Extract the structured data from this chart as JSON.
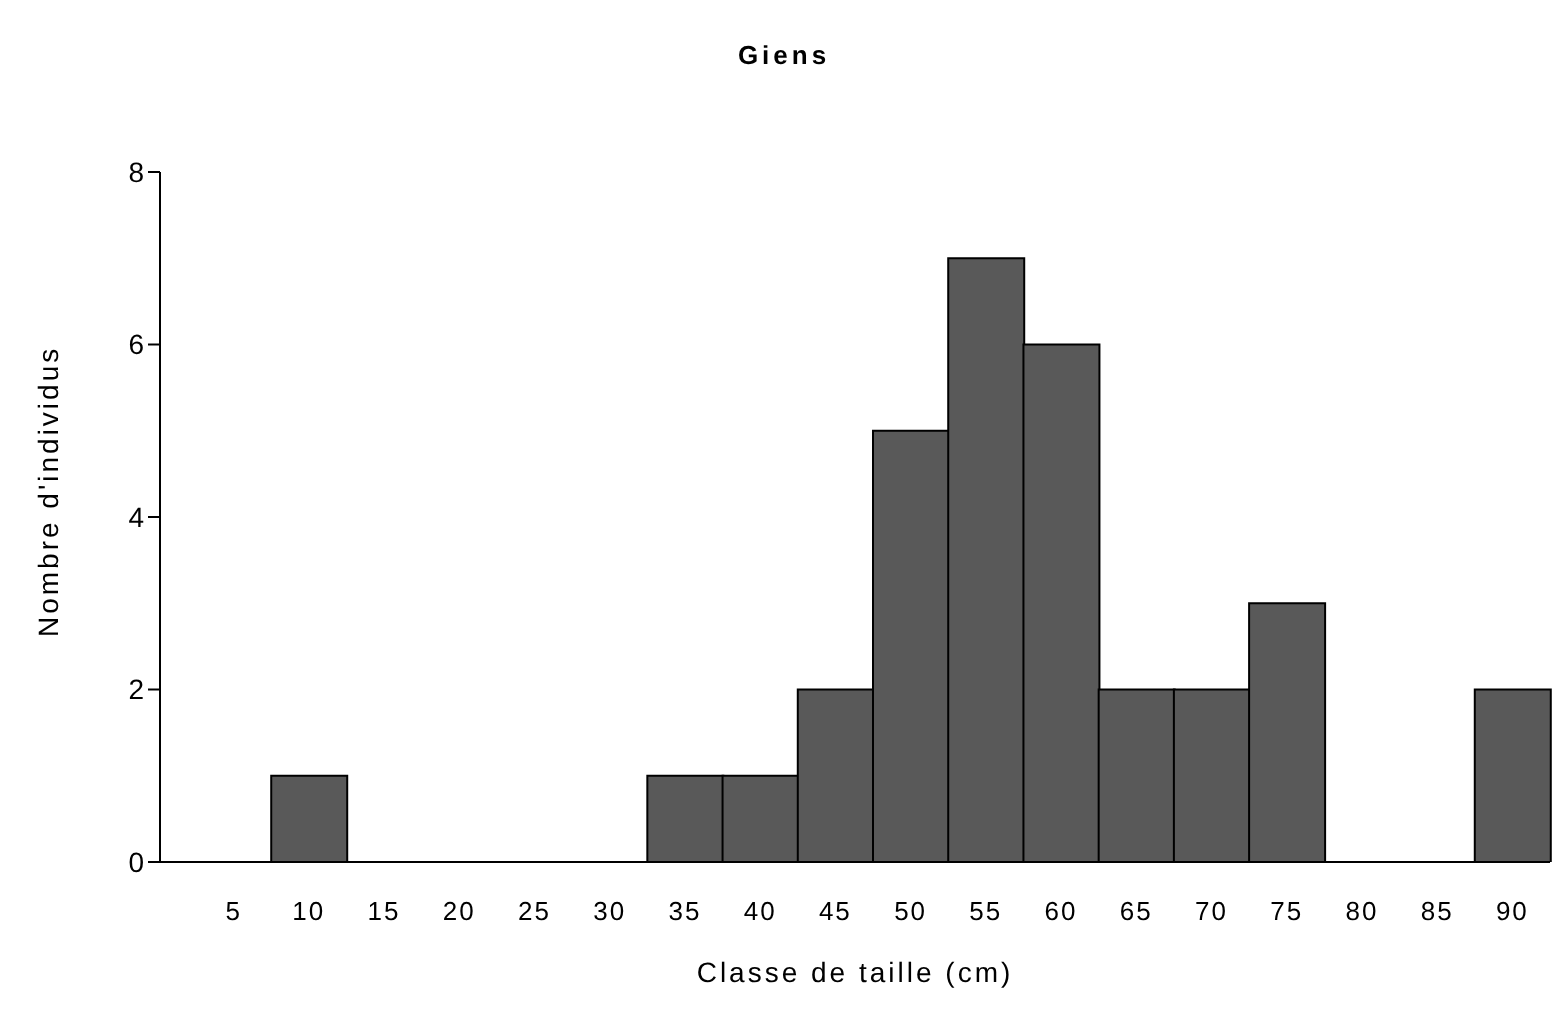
{
  "chart_data": {
    "type": "bar",
    "title": "Giens",
    "xlabel": "Classe de taille (cm)",
    "ylabel": "Nombre d'individus",
    "categories": [
      "5",
      "10",
      "15",
      "20",
      "25",
      "30",
      "35",
      "40",
      "45",
      "50",
      "55",
      "60",
      "65",
      "70",
      "75",
      "80",
      "85",
      "90"
    ],
    "values": [
      0,
      1,
      0,
      0,
      0,
      0,
      1,
      1,
      2,
      5,
      7,
      6,
      2,
      2,
      3,
      0,
      0,
      2
    ],
    "color": "#595959",
    "ylim": [
      0,
      8
    ],
    "yticks": [
      0,
      2,
      4,
      6,
      8
    ],
    "grid": false,
    "legend": false
  }
}
